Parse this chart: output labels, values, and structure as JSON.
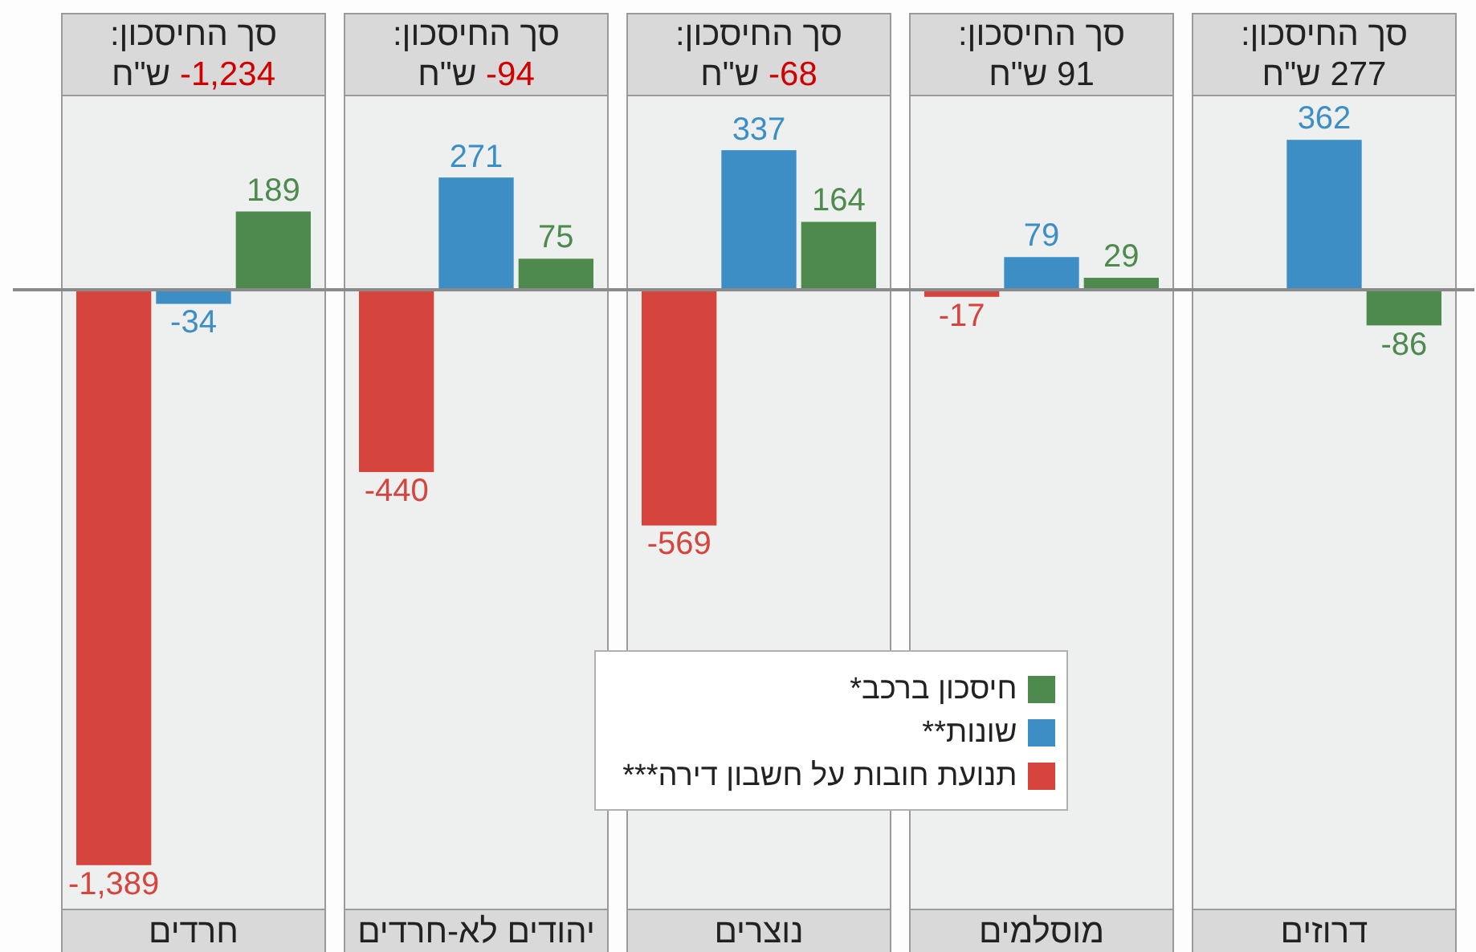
{
  "chart_data": {
    "type": "bar",
    "categories": [
      "חרדים",
      "יהודים לא-חרדים",
      "נוצרים",
      "מוסלמים",
      "דרוזים"
    ],
    "series": [
      {
        "name": "תנועת חובות על חשבון דירה***",
        "color": "#d6443e",
        "values": [
          -1389,
          -440,
          -569,
          -17,
          null
        ],
        "value_labels": [
          "-1,389",
          "-440",
          "-569",
          "-17",
          null
        ]
      },
      {
        "name": "שונות**",
        "color": "#3d8ec5",
        "values": [
          -34,
          271,
          337,
          79,
          362
        ],
        "value_labels": [
          "-34",
          "271",
          "337",
          "79",
          "362"
        ]
      },
      {
        "name": "חיסכון ברכב*",
        "color": "#4e8a4e",
        "values": [
          189,
          75,
          164,
          29,
          -86
        ],
        "value_labels": [
          "189",
          "75",
          "164",
          "29",
          "-86"
        ]
      }
    ],
    "bands": [
      {
        "axis": "x",
        "from": "חרדים",
        "to": "חרדים",
        "color": "#eef0ef"
      },
      {
        "axis": "x",
        "from": "יהודים לא-חרדים",
        "to": "יהודים לא-חרדים",
        "color": "#eef0ef"
      },
      {
        "axis": "x",
        "from": "נוצרים",
        "to": "נוצרים",
        "color": "#eef0ef"
      },
      {
        "axis": "x",
        "from": "מוסלמים",
        "to": "מוסלמים",
        "color": "#eef0ef"
      },
      {
        "axis": "x",
        "from": "דרוזים",
        "to": "דרוזים",
        "color": "#eef0ef"
      }
    ],
    "legend": "bottom",
    "annotations": [
      "סך החיסכון:\n-1,234 ש\"ח",
      "סך החיסכון:\n-94 ש\"ח",
      "סך החיסכון:\n-68 ש\"ח",
      "סך החיסכון:\n91 ש\"ח",
      "סך החיסכון:\n277 ש\"ח"
    ]
  }
}
